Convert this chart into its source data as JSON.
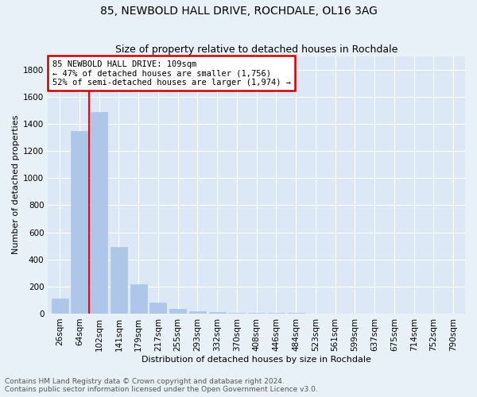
{
  "title": "85, NEWBOLD HALL DRIVE, ROCHDALE, OL16 3AG",
  "subtitle": "Size of property relative to detached houses in Rochdale",
  "xlabel": "Distribution of detached houses by size in Rochdale",
  "ylabel": "Number of detached properties",
  "categories": [
    "26sqm",
    "64sqm",
    "102sqm",
    "141sqm",
    "179sqm",
    "217sqm",
    "255sqm",
    "293sqm",
    "332sqm",
    "370sqm",
    "408sqm",
    "446sqm",
    "484sqm",
    "523sqm",
    "561sqm",
    "599sqm",
    "637sqm",
    "675sqm",
    "714sqm",
    "752sqm",
    "790sqm"
  ],
  "values": [
    110,
    1350,
    1490,
    490,
    215,
    80,
    35,
    20,
    10,
    6,
    5,
    4,
    3,
    2,
    2,
    1,
    1,
    1,
    1,
    1,
    0
  ],
  "bar_color": "#aec6e8",
  "bar_edge_color": "#aec6e8",
  "property_line_x": 1.5,
  "annotation_box_text": "85 NEWBOLD HALL DRIVE: 109sqm\n← 47% of detached houses are smaller (1,756)\n52% of semi-detached houses are larger (1,974) →",
  "annotation_box_color": "#cc0000",
  "ylim": [
    0,
    1900
  ],
  "yticks": [
    0,
    200,
    400,
    600,
    800,
    1000,
    1200,
    1400,
    1600,
    1800
  ],
  "footer_line1": "Contains HM Land Registry data © Crown copyright and database right 2024.",
  "footer_line2": "Contains public sector information licensed under the Open Government Licence v3.0.",
  "plot_bg_color": "#dce8f5",
  "fig_bg_color": "#e8f0f8",
  "grid_color": "#ffffff",
  "title_fontsize": 10,
  "subtitle_fontsize": 9,
  "ylabel_fontsize": 8,
  "xlabel_fontsize": 8,
  "tick_fontsize": 7.5,
  "annotation_fontsize": 7.5,
  "footer_fontsize": 6.5
}
